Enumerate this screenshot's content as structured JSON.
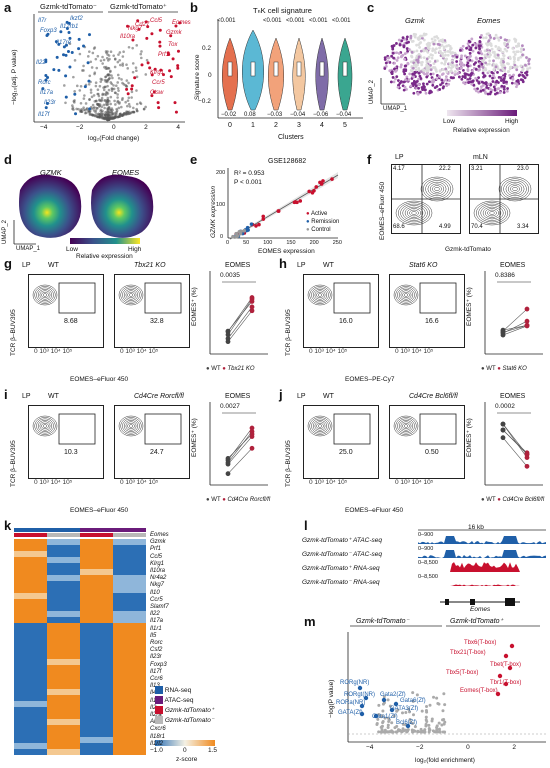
{
  "panels": {
    "a": {
      "label": "a",
      "title_left": "Gzmk-tdTomato⁻",
      "title_right": "Gzmk-tdTomato⁺",
      "xlabel": "log₂(Fold change)",
      "ylabel": "−log₁₀(adj. P value)",
      "xticks": [
        "−4",
        "−2",
        "0",
        "2",
        "4"
      ],
      "blue_genes": [
        "Il7r",
        "Foxp3",
        "Il17re",
        "Il22",
        "Rorc",
        "Il17a",
        "Il23r",
        "Il17f",
        "Il12rb1",
        "Ikzf2"
      ],
      "red_genes": [
        "Eomes",
        "Ccl5",
        "Gzmk",
        "Tox",
        "Prf1",
        "Klrg1",
        "Ccr5",
        "Ctsw",
        "Nkg7",
        "Il10ra",
        "Cd27"
      ]
    },
    "b": {
      "label": "b",
      "title": "TₕK cell signature",
      "ylabel": "Signature score",
      "xlabel": "Clusters",
      "clusters": [
        "0",
        "1",
        "2",
        "3",
        "4",
        "5"
      ],
      "pvalues": [
        "<0.001",
        "",
        "<0.001",
        "<0.001",
        "<0.001",
        "<0.001"
      ],
      "medians": [
        "−0.02",
        "0.08",
        "−0.03",
        "−0.04",
        "−0.06",
        "−0.04"
      ],
      "yticks": [
        "0.2",
        "0",
        "−0.2"
      ]
    },
    "c": {
      "label": "c",
      "maps": [
        "Gzmk",
        "Eomes"
      ],
      "axis_x": "UMAP_1",
      "axis_y": "UMAP_2",
      "legend_low": "Low",
      "legend_high": "High",
      "legend_title": "Relative expression"
    },
    "d": {
      "label": "d",
      "maps": [
        "GZMK",
        "EOMES"
      ],
      "axis_x": "UMAP_1",
      "axis_y": "UMAP_2",
      "legend_low": "Low",
      "legend_high": "High",
      "legend_title": "Relative expression"
    },
    "e": {
      "label": "e",
      "title": "GSE128682",
      "r2": "R² = 0.953",
      "p": "P < 0.001",
      "xlabel": "EOMES expression",
      "ylabel": "GZMK expression",
      "legend": [
        "Active",
        "Remission",
        "Control"
      ],
      "xticks": [
        "0",
        "50",
        "100",
        "150",
        "200",
        "250"
      ],
      "yticks": [
        "0",
        "100",
        "200"
      ]
    },
    "f": {
      "label": "f",
      "plots": [
        {
          "tissue": "LP",
          "q": [
            "4.17",
            "22.2",
            "68.6",
            "4.99"
          ]
        },
        {
          "tissue": "mLN",
          "q": [
            "3.21",
            "23.0",
            "70.4",
            "3.34"
          ]
        }
      ],
      "ylabel": "EOMES–eFluor 450",
      "xlabel": "Gzmk-tdTomato"
    },
    "g": {
      "label": "g",
      "tissue": "LP",
      "conds": [
        "WT",
        "Tbx21 KO"
      ],
      "gates": [
        "8.68",
        "32.8"
      ],
      "xlabel": "EOMES–eFluor 450",
      "ylabel": "TCR β–BUV395",
      "stat_title": "EOMES",
      "stat_y": "EOMES⁺ (%)",
      "pval": "0.0035",
      "legend": [
        "WT",
        "Tbx21 KO"
      ]
    },
    "h": {
      "label": "h",
      "tissue": "LP",
      "conds": [
        "WT",
        "Stat6 KO"
      ],
      "gates": [
        "16.0",
        "16.6"
      ],
      "xlabel": "EOMES–PE-Cy7",
      "ylabel": "TCR β–BUV395",
      "stat_title": "EOMES",
      "stat_y": "EOMES⁺ (%)",
      "pval": "0.8386",
      "legend": [
        "WT",
        "Stat6 KO"
      ]
    },
    "i": {
      "label": "i",
      "tissue": "LP",
      "conds": [
        "WT",
        "Cd4Cre Rorcfl/fl"
      ],
      "gates": [
        "10.3",
        "24.7"
      ],
      "xlabel": "EOMES–eFluor 450",
      "ylabel": "TCR β–BUV395",
      "stat_title": "EOMES",
      "stat_y": "EOMES⁺ (%)",
      "pval": "0.0027",
      "legend": [
        "WT",
        "Cd4Cre Rorcfl/fl"
      ]
    },
    "j": {
      "label": "j",
      "tissue": "LP",
      "conds": [
        "WT",
        "Cd4Cre Bcl6fl/fl"
      ],
      "gates": [
        "25.0",
        "0.50"
      ],
      "xlabel": "EOMES–eFluor 450",
      "ylabel": "TCR β–BUV395",
      "stat_title": "EOMES",
      "stat_y": "EOMES⁺ (%)",
      "pval": "0.0002",
      "legend": [
        "WT",
        "Cd4Cre Bcl6fl/fl"
      ]
    },
    "k": {
      "label": "k",
      "genes": [
        "Eomes",
        "Gzmk",
        "Prf1",
        "Ccl5",
        "Klrg1",
        "Il10ra",
        "Nr4a2",
        "Nkg7",
        "Il10",
        "Ccr5",
        "Slamf7",
        "Il22",
        "Il17a",
        "Il1r1",
        "Il5",
        "Rorc",
        "Csf2",
        "Il23r",
        "Foxp3",
        "Il17f",
        "Ccr6",
        "Il13",
        "Il4",
        "Il1rl1",
        "Il2",
        "Il2ra",
        "Ahr",
        "Cxcr6",
        "Il18r1",
        "Il1rl2"
      ],
      "legend": [
        "RNA-seq",
        "ATAC-seq",
        "Gzmk-tdTomato⁺",
        "Gzmk-tdTomato⁻"
      ],
      "scale_title": "z-score",
      "scale_ticks": [
        "−1.0",
        "0",
        "1.5"
      ]
    },
    "l": {
      "label": "l",
      "scale": "16 kb",
      "tracks": [
        {
          "name": "Gzmk-tdTomato⁺ ATAC-seq",
          "range": "0–900"
        },
        {
          "name": "Gzmk-tdTomato⁻ ATAC-seq",
          "range": "0–900"
        },
        {
          "name": "Gzmk-tdTomato⁺ RNA-seq",
          "range": "0–8,500"
        },
        {
          "name": "Gzmk-tdTomato⁻ RNA-seq",
          "range": "0–8,500"
        }
      ],
      "gene": "Eomes"
    },
    "m": {
      "label": "m",
      "title_left": "Gzmk-tdTomato⁻",
      "title_right": "Gzmk-tdTomato⁺",
      "xlabel": "log₂(fold enrichment)",
      "ylabel": "−log(P value)",
      "xticks": [
        "−4",
        "−2",
        "0",
        "2"
      ],
      "red_labels": [
        "Tbx6(T-box)",
        "Tbx21(T-box)",
        "Tbet(T-box)",
        "Tbx5(T-box)",
        "Tbr1(T-box)",
        "Eomes(T-box)"
      ],
      "blue_labels": [
        "RORg(NR)",
        "RORgt(NR)",
        "RORa(NR)",
        "Gata2(Zf)",
        "Gata6(Zf)",
        "GATA3(Zf)",
        "GATA(Zf)",
        "Gata1(Zf)",
        "Bcl6(Zf)"
      ]
    }
  },
  "colors": {
    "red": "#c8102e",
    "blue": "#1f5fa8",
    "grey": "#9a9a9a",
    "purple": "#6a1b7a"
  }
}
